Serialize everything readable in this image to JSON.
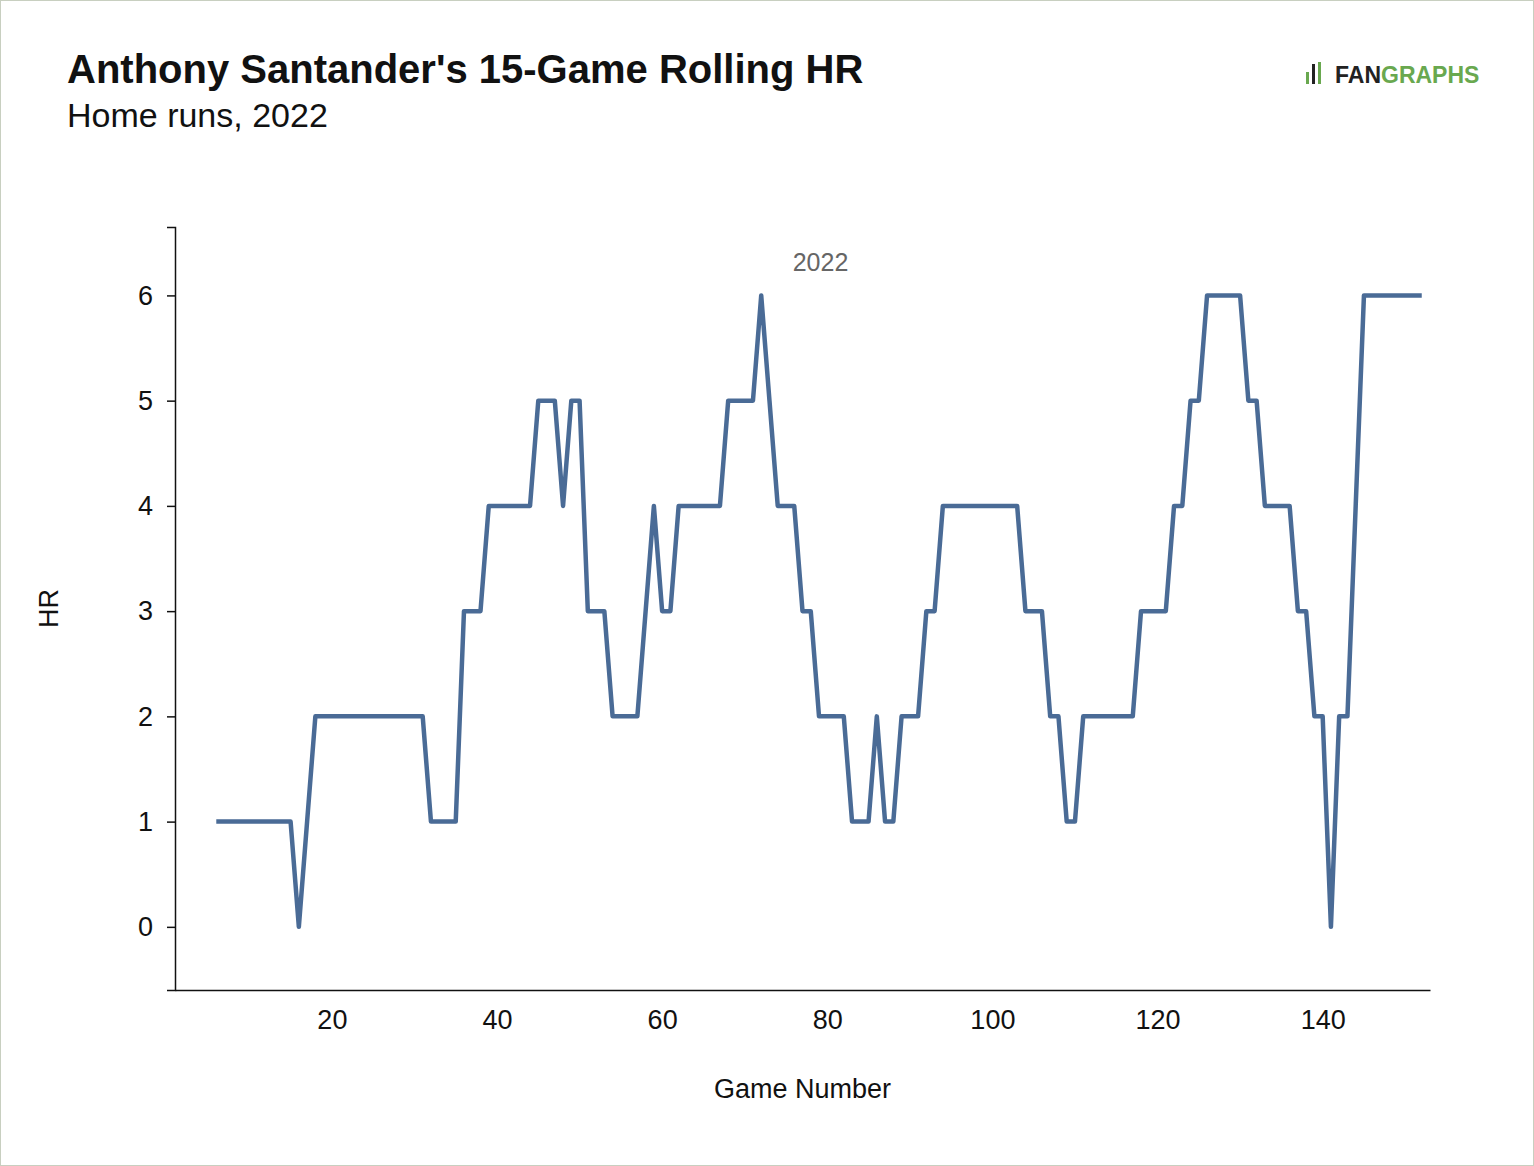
{
  "chart_data": {
    "type": "line",
    "title": "Anthony Santander's 15-Game Rolling HR",
    "subtitle": "Home runs, 2022",
    "logo": [
      "FAN",
      "GRAPHS"
    ],
    "annotation": "2022",
    "x_label": "Game Number",
    "y_label": "HR",
    "color": "#4a6b96",
    "grid": false,
    "xlim": [
      1,
      153
    ],
    "ylim": [
      -0.6,
      6.65
    ],
    "xticks": [
      20,
      40,
      60,
      80,
      100,
      120,
      140
    ],
    "yticks": [
      0,
      1,
      2,
      3,
      4,
      5,
      6
    ],
    "x": [
      6,
      7,
      8,
      9,
      10,
      11,
      12,
      13,
      14,
      15,
      16,
      17,
      18,
      19,
      20,
      21,
      22,
      23,
      24,
      25,
      26,
      27,
      28,
      29,
      30,
      31,
      32,
      33,
      34,
      35,
      36,
      37,
      38,
      39,
      40,
      41,
      42,
      43,
      44,
      45,
      46,
      47,
      48,
      49,
      50,
      51,
      52,
      53,
      54,
      55,
      56,
      57,
      58,
      59,
      60,
      61,
      62,
      63,
      64,
      65,
      66,
      67,
      68,
      69,
      70,
      71,
      72,
      73,
      74,
      75,
      76,
      77,
      78,
      79,
      80,
      81,
      82,
      83,
      84,
      85,
      86,
      87,
      88,
      89,
      90,
      91,
      92,
      93,
      94,
      95,
      96,
      97,
      98,
      99,
      100,
      101,
      102,
      103,
      104,
      105,
      106,
      107,
      108,
      109,
      110,
      111,
      112,
      113,
      114,
      115,
      116,
      117,
      118,
      119,
      120,
      121,
      122,
      123,
      124,
      125,
      126,
      127,
      128,
      129,
      130,
      131,
      132,
      133,
      134,
      135,
      136,
      137,
      138,
      139,
      140,
      141,
      142,
      143,
      144,
      145,
      146,
      147,
      148,
      149,
      150,
      151,
      152
    ],
    "values": [
      1,
      1,
      1,
      1,
      1,
      1,
      1,
      1,
      1,
      1,
      0,
      1,
      2,
      2,
      2,
      2,
      2,
      2,
      2,
      2,
      2,
      2,
      2,
      2,
      2,
      2,
      1,
      1,
      1,
      1,
      3,
      3,
      3,
      4,
      4,
      4,
      4,
      4,
      4,
      5,
      5,
      5,
      4,
      5,
      5,
      3,
      3,
      3,
      2,
      2,
      2,
      2,
      3,
      4,
      3,
      3,
      4,
      4,
      4,
      4,
      4,
      4,
      5,
      5,
      5,
      5,
      6,
      5,
      4,
      4,
      4,
      3,
      3,
      2,
      2,
      2,
      2,
      1,
      1,
      1,
      2,
      1,
      1,
      2,
      2,
      2,
      3,
      3,
      4,
      4,
      4,
      4,
      4,
      4,
      4,
      4,
      4,
      4,
      3,
      3,
      3,
      2,
      2,
      1,
      1,
      2,
      2,
      2,
      2,
      2,
      2,
      2,
      3,
      3,
      3,
      3,
      4,
      4,
      5,
      5,
      6,
      6,
      6,
      6,
      6,
      5,
      5,
      4,
      4,
      4,
      4,
      3,
      3,
      2,
      2,
      0,
      2,
      2,
      4,
      6,
      6,
      6,
      6,
      6,
      6,
      6,
      6
    ]
  }
}
